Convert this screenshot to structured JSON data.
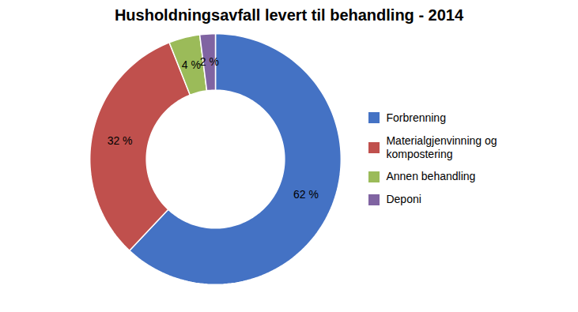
{
  "chart_data": {
    "type": "donut",
    "title": "Husholdningsavfall levert til behandling - 2014",
    "categories": [
      "Forbrenning",
      "Materialgjenvinning og\nkompostering",
      "Annen behandling",
      "Deponi"
    ],
    "values": [
      62,
      32,
      4,
      2
    ],
    "value_labels": [
      "62 %",
      "32 %",
      "4 %",
      "2 %"
    ],
    "colors": [
      "#4472C4",
      "#C0504D",
      "#9BBB59",
      "#8064A2"
    ],
    "data_labels": true,
    "legend": "right"
  }
}
